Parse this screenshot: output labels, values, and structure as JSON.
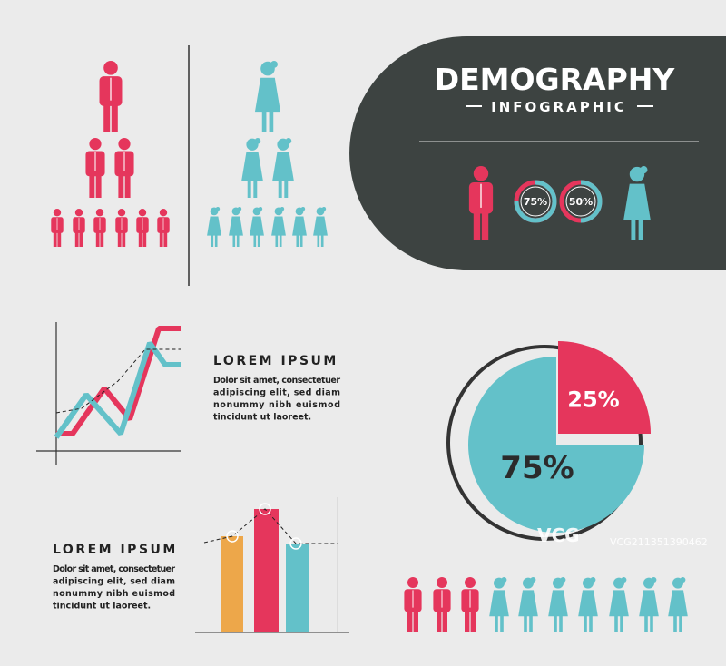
{
  "header": {
    "title": "DEMOGRAPHY",
    "subtitle": "INFOGRAPHIC"
  },
  "donuts": [
    {
      "value": 75,
      "label": "75%"
    },
    {
      "value": 50,
      "label": "50%"
    }
  ],
  "pie": {
    "values": [
      25,
      75
    ],
    "value_labels": [
      "25%",
      "75%"
    ],
    "colors": [
      "#e5365c",
      "#63c1c9"
    ]
  },
  "text_blocks": [
    {
      "title": "LOREM IPSUM",
      "lines": [
        "Dolor sit amet, consectetuer",
        "adipiscing elit, sed diam",
        "nonummy nibh euismod",
        "tincidunt ut laoreet."
      ]
    },
    {
      "title": "LOREM IPSUM",
      "lines": [
        "Dolor sit amet, consectetuer",
        "adipiscing elit, sed diam",
        "nonummy nibh euismod",
        "tincidunt ut laoreet."
      ]
    }
  ],
  "watermark": {
    "logo": "VCG",
    "id": "VCG211351390462"
  }
}
